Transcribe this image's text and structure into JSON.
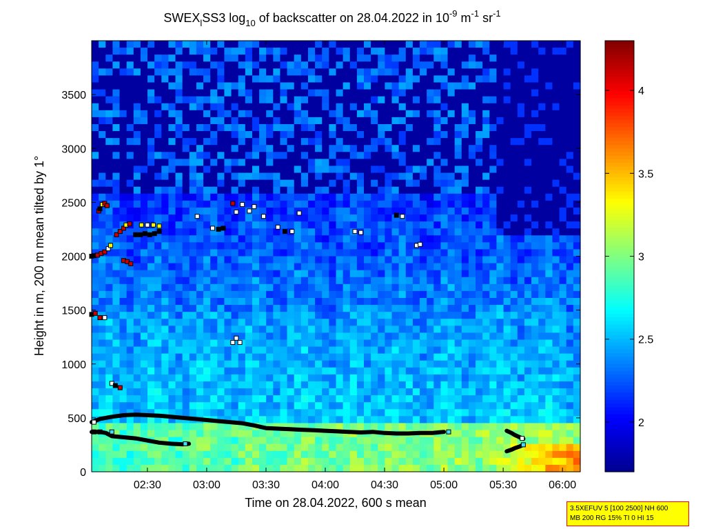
{
  "title": {
    "prefix": "SWEX",
    "subscript_l": "l",
    "after_sub": "SS3 log",
    "subscript_10": "10",
    "middle": " of backscatter on 28.04.2022 in 10",
    "exp1": "-9",
    "unit1": " m",
    "exp2": "-1",
    "unit2": " sr",
    "exp3": "-1"
  },
  "colors": {
    "colormap": [
      "#00008f",
      "#0000ff",
      "#0080ff",
      "#00ffff",
      "#80ff80",
      "#ffff00",
      "#ff8000",
      "#ff0000",
      "#800000"
    ],
    "marker_black": "#000000",
    "marker_white": "#ffffff",
    "marker_red": "#cc0000",
    "marker_yellow": "#ffff00",
    "marker_cyan": "#44ddff",
    "info_bg": "#ffff00",
    "info_border": "#ff0000"
  },
  "info_box": {
    "line1": "3.5XEFUV 5 [100 2500] NH 600",
    "line2": "MB 200 RG 15% TI 0 HI 15"
  },
  "chart_data": {
    "type": "heatmap",
    "title": "SWEX_l SS3 log10 of backscatter on 28.04.2022 in 10^-9 m^-1 sr^-1",
    "xlabel": "Time on 28.04.2022, 600 s mean",
    "ylabel": "Height in m, 200 m mean tilted by 1°",
    "xlim_hours": [
      2.03,
      6.15
    ],
    "ylim": [
      0,
      4000
    ],
    "xticks": [
      "02:30",
      "03:00",
      "03:30",
      "04:00",
      "04:30",
      "05:00",
      "05:30",
      "06:00"
    ],
    "xtick_hours": [
      2.5,
      3.0,
      3.5,
      4.0,
      4.5,
      5.0,
      5.5,
      6.0
    ],
    "yticks": [
      0,
      500,
      1000,
      1500,
      2000,
      2500,
      3000,
      3500
    ],
    "colorbar": {
      "range": [
        1.7,
        4.3
      ],
      "ticks": [
        "2",
        "2.5",
        "3",
        "3.5",
        "4"
      ],
      "tick_values": [
        2.0,
        2.5,
        3.0,
        3.5,
        4.0
      ]
    },
    "mixing_layer_upper": {
      "hours": [
        2.03,
        2.1,
        2.2,
        2.3,
        2.4,
        2.5,
        2.6,
        2.7,
        2.8,
        2.9,
        3.0,
        3.1,
        3.2,
        3.3,
        3.4,
        3.5,
        3.6,
        3.7,
        3.8,
        3.9,
        4.0,
        4.1,
        4.2,
        4.3,
        4.4,
        4.5,
        4.6,
        4.7,
        4.8,
        4.9,
        5.0
      ],
      "heights": [
        460,
        490,
        510,
        525,
        530,
        525,
        520,
        510,
        500,
        490,
        480,
        470,
        460,
        450,
        430,
        405,
        400,
        395,
        390,
        385,
        380,
        375,
        370,
        365,
        370,
        360,
        355,
        355,
        360,
        360,
        370
      ]
    },
    "mixing_layer_lower": {
      "hours": [
        2.03,
        2.1,
        2.15,
        2.2,
        2.3,
        2.4,
        2.5,
        2.6,
        2.7,
        2.8,
        2.85
      ],
      "heights": [
        370,
        370,
        360,
        330,
        320,
        310,
        290,
        270,
        260,
        255,
        260
      ]
    },
    "late_upper": {
      "hours": [
        5.53,
        5.57,
        5.6,
        5.64,
        5.67
      ],
      "heights": [
        380,
        360,
        340,
        320,
        305
      ]
    },
    "late_lower": {
      "hours": [
        5.53,
        5.57,
        5.6,
        5.64,
        5.67
      ],
      "heights": [
        190,
        205,
        220,
        235,
        250
      ]
    },
    "cloud_markers": [
      {
        "h": 2.03,
        "z": 2000,
        "c": "black"
      },
      {
        "h": 2.05,
        "z": 2005,
        "c": "black"
      },
      {
        "h": 2.08,
        "z": 2010,
        "c": "red"
      },
      {
        "h": 2.11,
        "z": 2025,
        "c": "red"
      },
      {
        "h": 2.14,
        "z": 2040,
        "c": "red"
      },
      {
        "h": 2.17,
        "z": 2070,
        "c": "white"
      },
      {
        "h": 2.19,
        "z": 2100,
        "c": "yellow"
      },
      {
        "h": 2.09,
        "z": 2420,
        "c": "red"
      },
      {
        "h": 2.1,
        "z": 2440,
        "c": "black"
      },
      {
        "h": 2.12,
        "z": 2480,
        "c": "yellow"
      },
      {
        "h": 2.14,
        "z": 2490,
        "c": "red"
      },
      {
        "h": 2.16,
        "z": 2470,
        "c": "red"
      },
      {
        "h": 2.24,
        "z": 2200,
        "c": "red"
      },
      {
        "h": 2.27,
        "z": 2230,
        "c": "red"
      },
      {
        "h": 2.3,
        "z": 2260,
        "c": "red"
      },
      {
        "h": 2.32,
        "z": 2290,
        "c": "yellow"
      },
      {
        "h": 2.35,
        "z": 2300,
        "c": "red"
      },
      {
        "h": 2.4,
        "z": 2200,
        "c": "black"
      },
      {
        "h": 2.44,
        "z": 2200,
        "c": "black"
      },
      {
        "h": 2.48,
        "z": 2210,
        "c": "black"
      },
      {
        "h": 2.52,
        "z": 2200,
        "c": "black"
      },
      {
        "h": 2.56,
        "z": 2210,
        "c": "black"
      },
      {
        "h": 2.6,
        "z": 2230,
        "c": "black"
      },
      {
        "h": 2.45,
        "z": 2290,
        "c": "yellow"
      },
      {
        "h": 2.5,
        "z": 2290,
        "c": "white"
      },
      {
        "h": 2.55,
        "z": 2290,
        "c": "yellow"
      },
      {
        "h": 2.6,
        "z": 2280,
        "c": "yellow"
      },
      {
        "h": 2.3,
        "z": 1960,
        "c": "red"
      },
      {
        "h": 2.33,
        "z": 1950,
        "c": "red"
      },
      {
        "h": 2.36,
        "z": 1930,
        "c": "red"
      },
      {
        "h": 2.03,
        "z": 1460,
        "c": "black"
      },
      {
        "h": 2.06,
        "z": 1470,
        "c": "red"
      },
      {
        "h": 2.1,
        "z": 1430,
        "c": "red"
      },
      {
        "h": 2.14,
        "z": 1430,
        "c": "white"
      },
      {
        "h": 2.2,
        "z": 820,
        "c": "white"
      },
      {
        "h": 2.23,
        "z": 800,
        "c": "black"
      },
      {
        "h": 2.27,
        "z": 780,
        "c": "red"
      },
      {
        "h": 2.92,
        "z": 2370,
        "c": "white"
      },
      {
        "h": 3.05,
        "z": 2260,
        "c": "white"
      },
      {
        "h": 3.1,
        "z": 2250,
        "c": "black"
      },
      {
        "h": 3.14,
        "z": 2260,
        "c": "black"
      },
      {
        "h": 3.22,
        "z": 2490,
        "c": "red"
      },
      {
        "h": 3.25,
        "z": 2410,
        "c": "white"
      },
      {
        "h": 3.3,
        "z": 2480,
        "c": "white"
      },
      {
        "h": 3.36,
        "z": 2420,
        "c": "white"
      },
      {
        "h": 3.4,
        "z": 2460,
        "c": "white"
      },
      {
        "h": 3.48,
        "z": 2370,
        "c": "white"
      },
      {
        "h": 3.6,
        "z": 2270,
        "c": "white"
      },
      {
        "h": 3.66,
        "z": 2230,
        "c": "black"
      },
      {
        "h": 3.72,
        "z": 2230,
        "c": "white"
      },
      {
        "h": 3.78,
        "z": 2400,
        "c": "white"
      },
      {
        "h": 4.25,
        "z": 2230,
        "c": "white"
      },
      {
        "h": 4.3,
        "z": 2220,
        "c": "white"
      },
      {
        "h": 4.6,
        "z": 2380,
        "c": "black"
      },
      {
        "h": 4.65,
        "z": 2370,
        "c": "white"
      },
      {
        "h": 4.77,
        "z": 2100,
        "c": "white"
      },
      {
        "h": 4.8,
        "z": 2110,
        "c": "white"
      },
      {
        "h": 3.22,
        "z": 1200,
        "c": "white"
      },
      {
        "h": 3.25,
        "z": 1240,
        "c": "white"
      },
      {
        "h": 3.28,
        "z": 1200,
        "c": "white"
      },
      {
        "h": 2.05,
        "z": 460,
        "c": "white"
      },
      {
        "h": 2.82,
        "z": 260,
        "c": "cyan"
      },
      {
        "h": 2.05,
        "z": 370,
        "c": "black"
      },
      {
        "h": 2.1,
        "z": 370,
        "c": "black"
      },
      {
        "h": 2.2,
        "z": 370,
        "c": "cyan"
      },
      {
        "h": 5.04,
        "z": 370,
        "c": "cyan"
      },
      {
        "h": 5.66,
        "z": 310,
        "c": "white"
      },
      {
        "h": 5.67,
        "z": 250,
        "c": "cyan"
      }
    ]
  }
}
